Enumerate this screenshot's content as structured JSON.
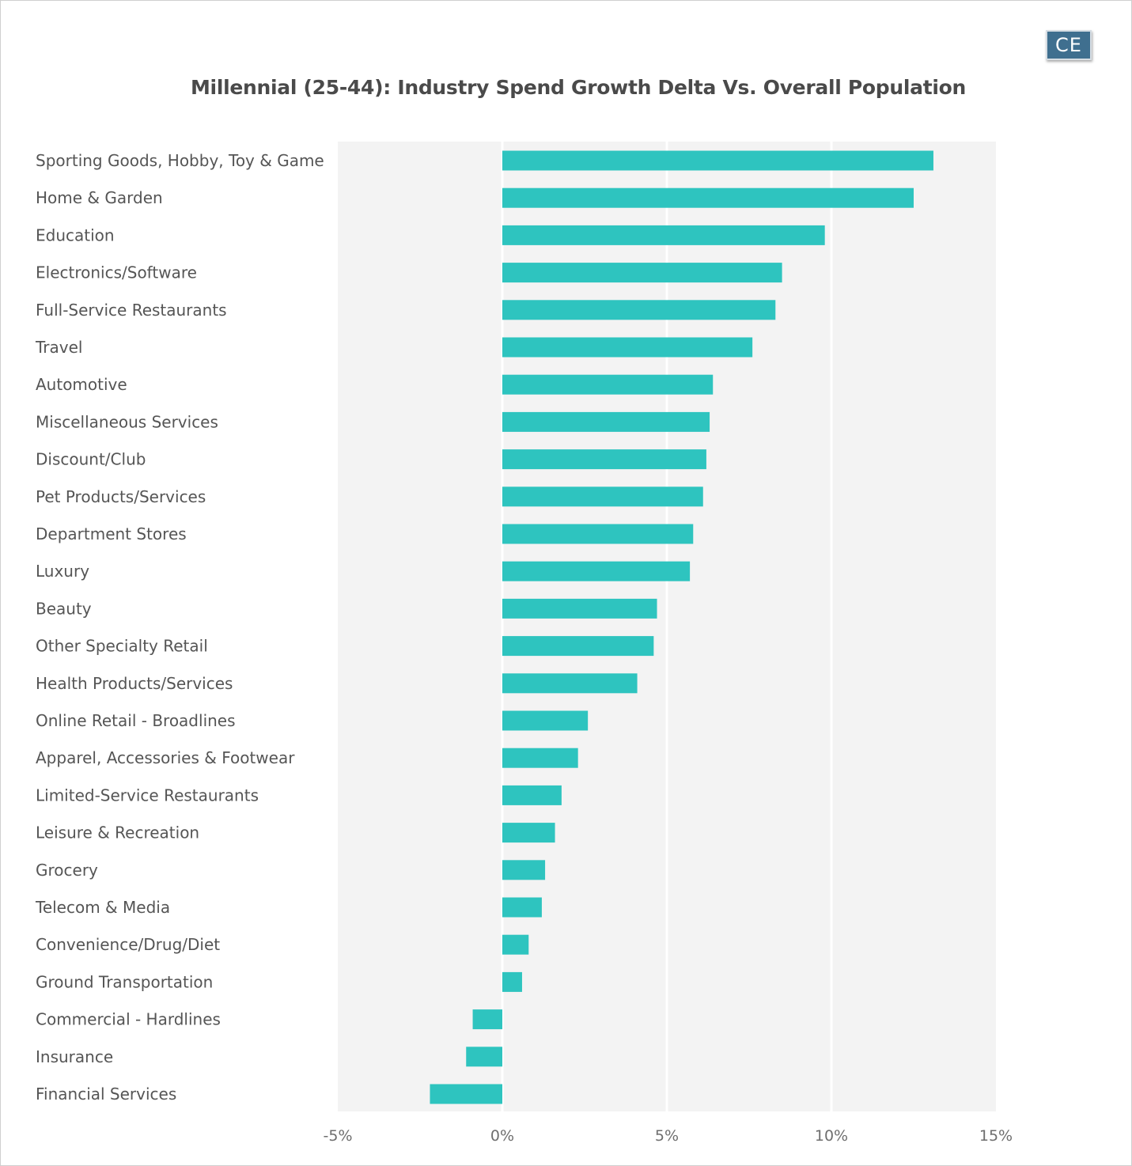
{
  "logo": {
    "text": "CE"
  },
  "chart_data": {
    "type": "bar",
    "orientation": "horizontal",
    "title": "Millennial (25-44): Industry Spend Growth Delta Vs. Overall Population",
    "xlabel": "",
    "ylabel": "",
    "xlim": [
      -5,
      15
    ],
    "xticks": [
      -5,
      0,
      5,
      10,
      15
    ],
    "xtick_labels": [
      "-5%",
      "0%",
      "5%",
      "10%",
      "15%"
    ],
    "grid": true,
    "bar_color": "#2ec4bf",
    "plot_background": "#f3f3f3",
    "categories": [
      "Sporting Goods, Hobby, Toy & Game",
      "Home & Garden",
      "Education",
      "Electronics/Software",
      "Full-Service Restaurants",
      "Travel",
      "Automotive",
      "Miscellaneous Services",
      "Discount/Club",
      "Pet Products/Services",
      "Department Stores",
      "Luxury",
      "Beauty",
      "Other Specialty Retail",
      "Health Products/Services",
      "Online Retail - Broadlines",
      "Apparel, Accessories & Footwear",
      "Limited-Service Restaurants",
      "Leisure & Recreation",
      "Grocery",
      "Telecom & Media",
      "Convenience/Drug/Diet",
      "Ground Transportation",
      "Commercial - Hardlines",
      "Insurance",
      "Financial Services"
    ],
    "values": [
      13.1,
      12.5,
      9.8,
      8.5,
      8.3,
      7.6,
      6.4,
      6.3,
      6.2,
      6.1,
      5.8,
      5.7,
      4.7,
      4.6,
      4.1,
      2.6,
      2.3,
      1.8,
      1.6,
      1.3,
      1.2,
      0.8,
      0.6,
      -0.9,
      -1.1,
      -2.2
    ]
  }
}
